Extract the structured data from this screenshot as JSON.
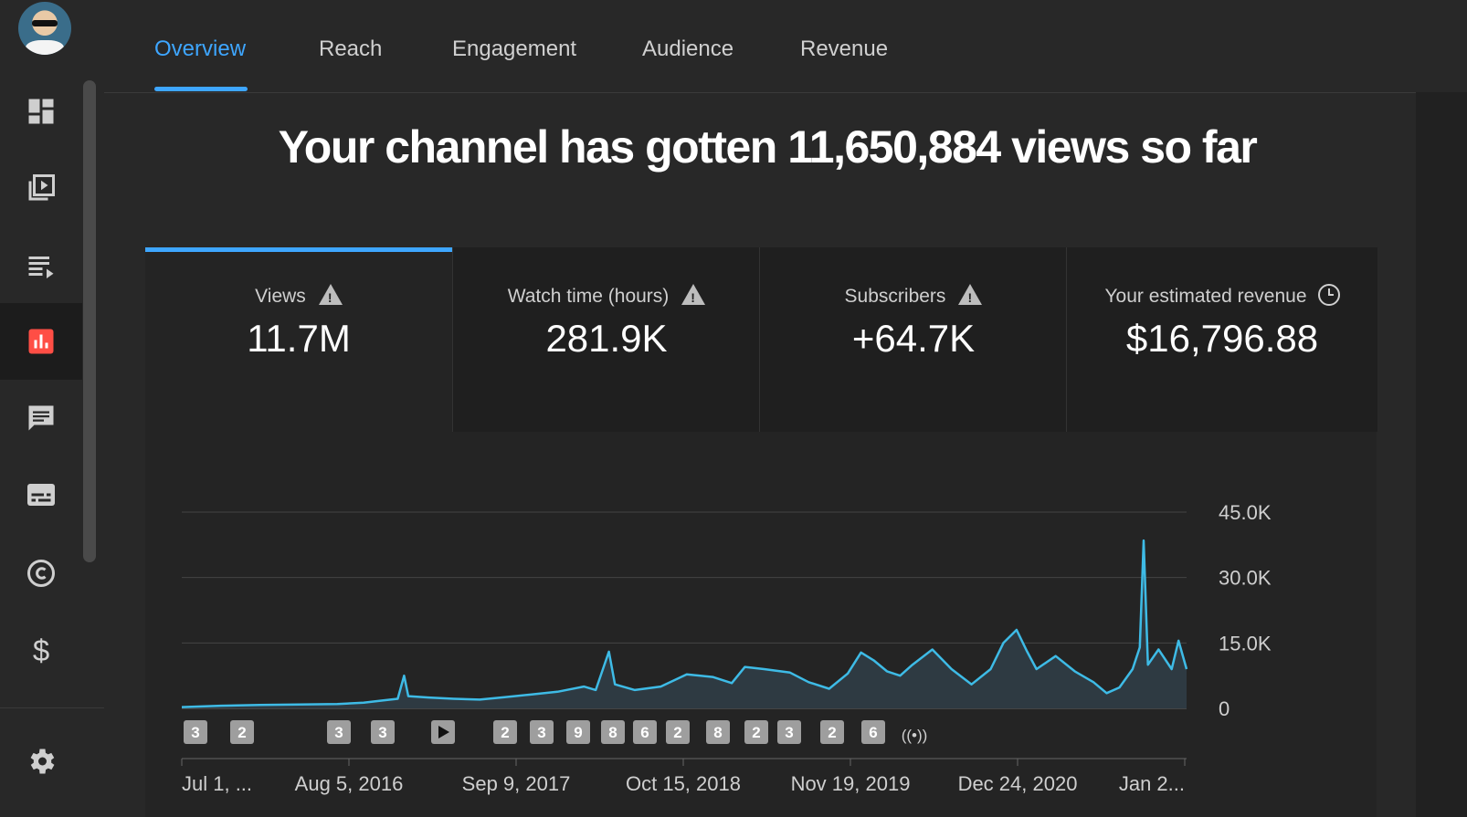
{
  "tabs": [
    {
      "label": "Overview",
      "active": true
    },
    {
      "label": "Reach"
    },
    {
      "label": "Engagement"
    },
    {
      "label": "Audience"
    },
    {
      "label": "Revenue"
    }
  ],
  "sidebar": {
    "items": [
      {
        "name": "dashboard-icon"
      },
      {
        "name": "content-icon"
      },
      {
        "name": "playlists-icon"
      },
      {
        "name": "analytics-icon",
        "active": true
      },
      {
        "name": "comments-icon"
      },
      {
        "name": "subtitles-icon"
      },
      {
        "name": "copyright-icon"
      },
      {
        "name": "monetization-icon"
      },
      {
        "name": "settings-icon"
      }
    ]
  },
  "headline": "Your channel has gotten 11,650,884 views so far",
  "metrics": [
    {
      "label": "Views",
      "value": "11.7M",
      "icon": "warning-icon",
      "active": true
    },
    {
      "label": "Watch time (hours)",
      "value": "281.9K",
      "icon": "warning-icon"
    },
    {
      "label": "Subscribers",
      "value": "+64.7K",
      "icon": "warning-icon"
    },
    {
      "label": "Your estimated revenue",
      "value": "$16,796.88",
      "icon": "clock-icon"
    }
  ],
  "colors": {
    "accent": "#3ea6ff",
    "line": "#3ebbe6",
    "active_icon": "#ff4e45"
  },
  "chart_data": {
    "type": "area",
    "x_tick_labels": [
      "Jul 1, ...",
      "Aug 5, 2016",
      "Sep 9, 2017",
      "Oct 15, 2018",
      "Nov 19, 2019",
      "Dec 24, 2020",
      "Jan 2..."
    ],
    "y_tick_labels": [
      "0",
      "15.0K",
      "30.0K",
      "45.0K"
    ],
    "ylim": [
      0,
      45000
    ],
    "grid": true,
    "x_span": [
      "2015-07-01",
      "2021-07-01"
    ],
    "series": [
      {
        "values": [
          [
            "2015-07-01",
            300
          ],
          [
            "2015-10-01",
            600
          ],
          [
            "2016-01-01",
            800
          ],
          [
            "2016-04-01",
            900
          ],
          [
            "2016-07-01",
            1000
          ],
          [
            "2016-09-01",
            1300
          ],
          [
            "2016-10-15",
            1800
          ],
          [
            "2016-11-20",
            2200
          ],
          [
            "2016-12-05",
            7500
          ],
          [
            "2016-12-15",
            2800
          ],
          [
            "2017-02-01",
            2500
          ],
          [
            "2017-04-01",
            2200
          ],
          [
            "2017-06-01",
            2000
          ],
          [
            "2017-08-01",
            2600
          ],
          [
            "2017-10-01",
            3200
          ],
          [
            "2017-12-01",
            3800
          ],
          [
            "2018-02-01",
            5000
          ],
          [
            "2018-03-01",
            4200
          ],
          [
            "2018-04-01",
            13000
          ],
          [
            "2018-04-15",
            5500
          ],
          [
            "2018-06-01",
            4200
          ],
          [
            "2018-08-01",
            5000
          ],
          [
            "2018-10-01",
            7800
          ],
          [
            "2018-12-01",
            7200
          ],
          [
            "2019-01-15",
            5800
          ],
          [
            "2019-02-15",
            9500
          ],
          [
            "2019-04-01",
            9000
          ],
          [
            "2019-06-01",
            8200
          ],
          [
            "2019-07-15",
            6000
          ],
          [
            "2019-09-01",
            4500
          ],
          [
            "2019-10-15",
            8000
          ],
          [
            "2019-11-15",
            12800
          ],
          [
            "2019-12-15",
            11000
          ],
          [
            "2020-01-15",
            8500
          ],
          [
            "2020-02-15",
            7500
          ],
          [
            "2020-03-15",
            10000
          ],
          [
            "2020-05-01",
            13500
          ],
          [
            "2020-06-15",
            9000
          ],
          [
            "2020-08-01",
            5500
          ],
          [
            "2020-09-15",
            9000
          ],
          [
            "2020-10-15",
            15000
          ],
          [
            "2020-11-15",
            18000
          ],
          [
            "2020-12-10",
            13000
          ],
          [
            "2021-01-01",
            9000
          ],
          [
            "2021-02-15",
            12000
          ],
          [
            "2021-04-01",
            8500
          ],
          [
            "2021-05-15",
            6000
          ],
          [
            "2021-06-15",
            3500
          ],
          [
            "2021-07-15",
            4800
          ],
          [
            "2021-08-15",
            9000
          ],
          [
            "2021-09-01",
            14000
          ],
          [
            "2021-09-10",
            38500
          ],
          [
            "2021-09-20",
            10000
          ],
          [
            "2021-10-15",
            13500
          ],
          [
            "2021-11-15",
            9000
          ],
          [
            "2021-12-01",
            15500
          ],
          [
            "2021-12-20",
            9000
          ]
        ]
      }
    ],
    "markers": [
      "3",
      "2",
      "3",
      "3",
      "play",
      "2",
      "3",
      "9",
      "8",
      "6",
      "2",
      "8",
      "2",
      "3",
      "2",
      "6",
      "live"
    ]
  }
}
